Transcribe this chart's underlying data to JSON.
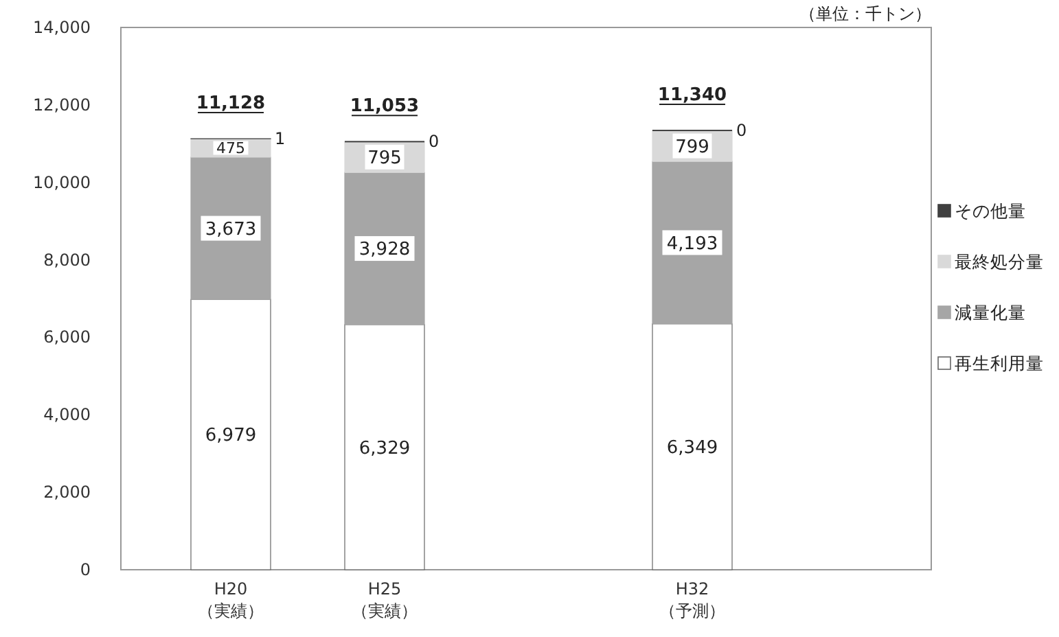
{
  "chart_data": {
    "type": "bar",
    "stacked": true,
    "categories": [
      "H20 （実績）",
      "H25 （実績）",
      null,
      "H32 （予測）"
    ],
    "series": [
      {
        "name": "再生利用量",
        "color": "#ffffff",
        "values": [
          6979,
          6329,
          null,
          6349
        ],
        "value_labels": [
          "6,979",
          "6,329",
          null,
          "6,349"
        ]
      },
      {
        "name": "減量化量",
        "color": "#a6a6a6",
        "values": [
          3673,
          3928,
          null,
          4193
        ],
        "value_labels": [
          "3,673",
          "3,928",
          null,
          "4,193"
        ]
      },
      {
        "name": "最終処分量",
        "color": "#d9d9d9",
        "values": [
          475,
          795,
          null,
          799
        ],
        "value_labels": [
          "475",
          "795",
          null,
          "799"
        ]
      },
      {
        "name": "その他量",
        "color": "#404040",
        "values": [
          1,
          0,
          null,
          0
        ],
        "value_labels": [
          "1",
          "0",
          null,
          "0"
        ]
      }
    ],
    "totals": [
      "11,128",
      "11,053",
      null,
      "11,340"
    ],
    "ylim": [
      0,
      14000
    ],
    "yticks": [
      {
        "value": 0,
        "label": "0"
      },
      {
        "value": 2000,
        "label": "2,000"
      },
      {
        "value": 4000,
        "label": "4,000"
      },
      {
        "value": 6000,
        "label": "6,000"
      },
      {
        "value": 8000,
        "label": "8,000"
      },
      {
        "value": 10000,
        "label": "10,000"
      },
      {
        "value": 12000,
        "label": "12,000"
      },
      {
        "value": 14000,
        "label": "14,000"
      }
    ],
    "legend": "right",
    "annotations": [
      "（単位：千トン）"
    ]
  }
}
